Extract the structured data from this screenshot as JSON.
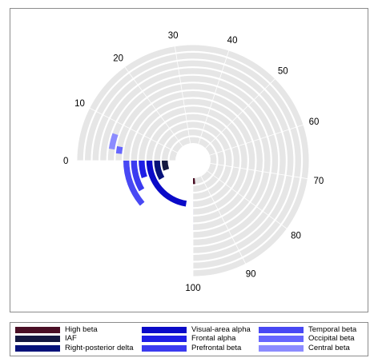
{
  "chart_data": {
    "type": "radial_bar",
    "angle_axis": {
      "range": [
        0,
        100
      ],
      "tick_labels": [
        "0",
        "10",
        "20",
        "30",
        "40",
        "50",
        "60",
        "70",
        "80",
        "90",
        "100"
      ]
    },
    "track_color": "#e6e6e6",
    "series": [
      {
        "name": "High beta",
        "color": "#4a0f25",
        "start": 98,
        "end": 100
      },
      {
        "name": "IAF",
        "color": "#141840",
        "start": 100,
        "end": 107
      },
      {
        "name": "Right-posterior delta",
        "color": "#06127a",
        "start": 100,
        "end": 111
      },
      {
        "name": "Visual-area alpha",
        "color": "#0a0ac8",
        "start": 100,
        "end": 130
      },
      {
        "name": "Frontal alpha",
        "color": "#1e1ee6",
        "start": 100,
        "end": 107
      },
      {
        "name": "Prefrontal beta",
        "color": "#3b3bf0",
        "start": 100,
        "end": 111
      },
      {
        "name": "Temporal beta",
        "color": "#4848f4",
        "start": 100,
        "end": 115
      },
      {
        "name": "Occipital beta",
        "color": "#6666ff",
        "start": 2,
        "end": 4
      },
      {
        "name": "Central beta",
        "color": "#8c8cff",
        "start": 3,
        "end": 7
      }
    ]
  }
}
